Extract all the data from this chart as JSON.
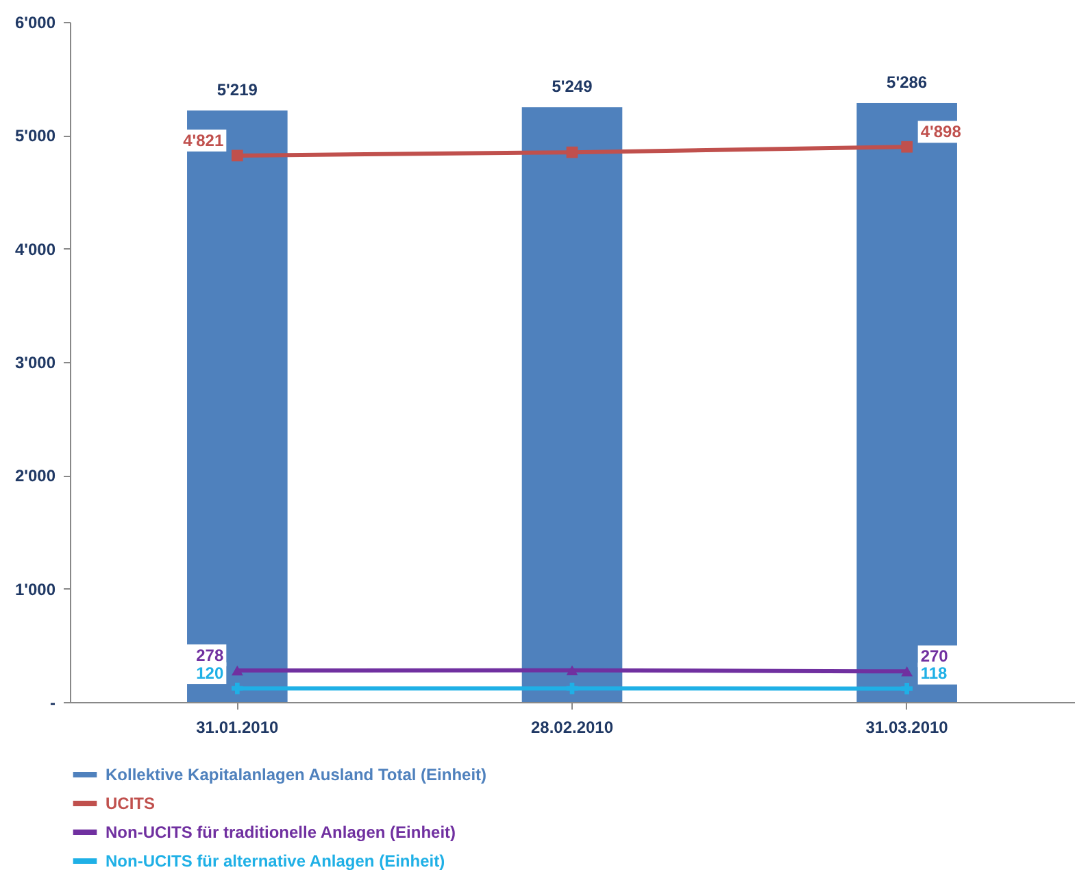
{
  "chart_data": {
    "type": "bar",
    "categories": [
      "31.01.2010",
      "28.02.2010",
      "31.03.2010"
    ],
    "series": [
      {
        "name": "Kollektive Kapitalanlagen Ausland Total (Einheit)",
        "color": "#4f81bd",
        "values": [
          5219,
          5249,
          5286
        ],
        "value_labels": [
          "5'219",
          "5'249",
          "5'286"
        ]
      },
      {
        "type": "line",
        "name": "UCITS",
        "color": "#c0504d",
        "marker": "square",
        "values": [
          4821,
          4850,
          4898
        ],
        "value_labels": [
          "4'821",
          null,
          "4'898"
        ]
      },
      {
        "type": "line",
        "name": "Non-UCITS für traditionelle Anlagen (Einheit)",
        "color": "#7030a0",
        "marker": "triangle",
        "values": [
          278,
          280,
          270
        ],
        "value_labels": [
          "278",
          null,
          "270"
        ]
      },
      {
        "type": "line",
        "name": "Non-UCITS für alternative Anlagen (Einheit)",
        "color": "#1fb0e6",
        "marker": "cross",
        "values": [
          120,
          120,
          118
        ],
        "value_labels": [
          "120",
          null,
          "118"
        ]
      }
    ],
    "ylim": [
      0,
      6000
    ],
    "yticks": [
      {
        "value": 0,
        "label": "-"
      },
      {
        "value": 1000,
        "label": "1'000"
      },
      {
        "value": 2000,
        "label": "2'000"
      },
      {
        "value": 3000,
        "label": "3'000"
      },
      {
        "value": 4000,
        "label": "4'000"
      },
      {
        "value": 5000,
        "label": "5'000"
      },
      {
        "value": 6000,
        "label": "6'000"
      }
    ],
    "grid": false,
    "legend": "bottom"
  }
}
